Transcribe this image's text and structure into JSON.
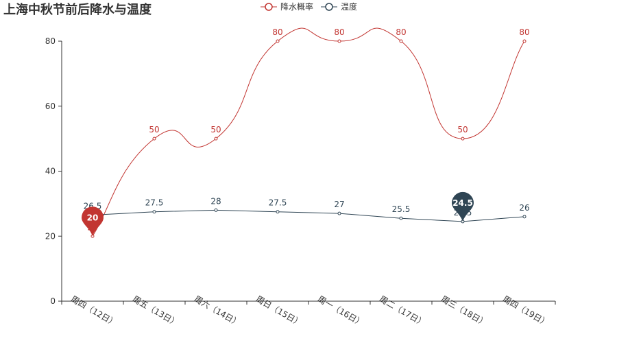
{
  "chart_data": {
    "type": "line",
    "title": "上海中秋节前后降水与温度",
    "categories": [
      "周四（12日）",
      "周五（13日）",
      "周六（14日）",
      "周日（15日）",
      "周一（16日）",
      "周二（17日）",
      "周三（18日）",
      "周四（19日）"
    ],
    "ylim": [
      0,
      80
    ],
    "yticks": [
      0,
      20,
      40,
      60,
      80
    ],
    "grid": false,
    "legend_position": "top-center",
    "series": [
      {
        "name": "降水概率",
        "color": "#c23531",
        "smooth": true,
        "values": [
          20,
          50,
          50,
          80,
          80,
          80,
          50,
          80
        ],
        "markpoint": {
          "index": 0,
          "label": "20",
          "type": "min"
        }
      },
      {
        "name": "温度",
        "color": "#2f4554",
        "smooth": false,
        "values": [
          26.5,
          27.5,
          28,
          27.5,
          27,
          25.5,
          24.5,
          26
        ],
        "markpoint": {
          "index": 6,
          "label": "24.5",
          "type": "min"
        }
      }
    ]
  }
}
